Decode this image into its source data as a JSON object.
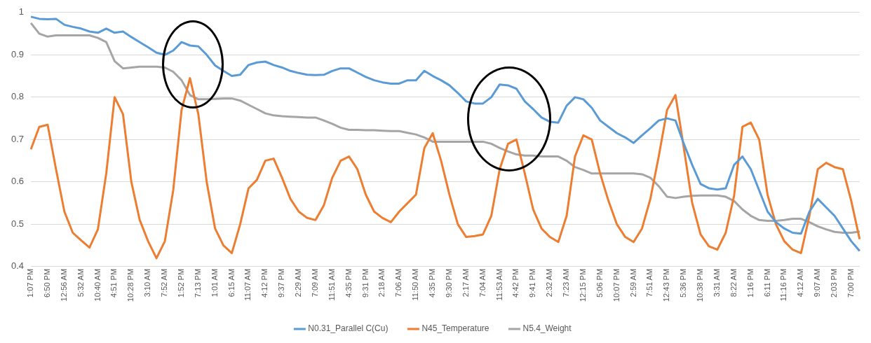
{
  "chart_data": {
    "type": "line",
    "categories": [
      "1:07 PM",
      null,
      "6:50 PM",
      null,
      "12:56 AM",
      null,
      "5:32 AM",
      null,
      "10:40 AM",
      null,
      "4:51 PM",
      null,
      "10:28 PM",
      null,
      "3:10 AM",
      null,
      "7:52 AM",
      null,
      "1:52 PM",
      null,
      "7:13 PM",
      null,
      "1:01 AM",
      null,
      "6:15 AM",
      null,
      "11:07 AM",
      null,
      "4:12 PM",
      null,
      "9:37 PM",
      null,
      "2:29 AM",
      null,
      "7:09 AM",
      null,
      "11:51 AM",
      null,
      "4:35 PM",
      null,
      "9:31 PM",
      null,
      "2:18 AM",
      null,
      "7:06 AM",
      null,
      "11:50 AM",
      null,
      "4:35 PM",
      null,
      "9:30 PM",
      null,
      "2:17 AM",
      null,
      "7:04 AM",
      null,
      "11:53 AM",
      null,
      "4:42 PM",
      null,
      "9:41 PM",
      null,
      "2:32 AM",
      null,
      "7:23 AM",
      null,
      "12:15 PM",
      null,
      "5:06 PM",
      null,
      "10:07 PM",
      null,
      "2:59 AM",
      null,
      "7:51 AM",
      null,
      "12:43 PM",
      null,
      "5:36 PM",
      null,
      "10:38 PM",
      null,
      "3:31 AM",
      null,
      "8:22 AM",
      null,
      "1:16 PM",
      null,
      "6:11 PM",
      null,
      "11:16 PM",
      null,
      "4:12 AM",
      null,
      "9:07 AM",
      null,
      "2:03 PM",
      null,
      "7:00 PM",
      null
    ],
    "series": [
      {
        "name": "N0.31_Parallel C(Cu)",
        "color": "#5b9bd5",
        "values": [
          0.99,
          0.985,
          0.984,
          0.985,
          0.971,
          0.966,
          0.962,
          0.955,
          0.952,
          0.962,
          0.952,
          0.955,
          0.942,
          0.93,
          0.918,
          0.905,
          0.9,
          0.91,
          0.93,
          0.922,
          0.92,
          0.9,
          0.875,
          0.862,
          0.85,
          0.853,
          0.876,
          0.882,
          0.884,
          0.876,
          0.87,
          0.862,
          0.857,
          0.853,
          0.852,
          0.853,
          0.862,
          0.868,
          0.868,
          0.858,
          0.848,
          0.84,
          0.835,
          0.832,
          0.832,
          0.84,
          0.84,
          0.862,
          0.85,
          0.84,
          0.828,
          0.81,
          0.79,
          0.785,
          0.785,
          0.8,
          0.83,
          0.828,
          0.82,
          0.79,
          0.772,
          0.752,
          0.742,
          0.74,
          0.78,
          0.8,
          0.795,
          0.775,
          0.745,
          0.73,
          0.715,
          0.705,
          0.692,
          0.71,
          0.727,
          0.745,
          0.75,
          0.745,
          0.69,
          0.64,
          0.595,
          0.585,
          0.582,
          0.585,
          0.64,
          0.66,
          0.63,
          0.58,
          0.53,
          0.505,
          0.49,
          0.48,
          0.478,
          0.53,
          0.56,
          0.54,
          0.52,
          0.49,
          0.46,
          0.437
        ]
      },
      {
        "name": "N45_Temperature",
        "color": "#ed7d31",
        "values": [
          0.677,
          0.73,
          0.735,
          0.63,
          0.53,
          0.48,
          0.462,
          0.445,
          0.488,
          0.62,
          0.8,
          0.76,
          0.6,
          0.51,
          0.46,
          0.42,
          0.46,
          0.58,
          0.77,
          0.845,
          0.76,
          0.6,
          0.49,
          0.45,
          0.432,
          0.5,
          0.585,
          0.605,
          0.65,
          0.655,
          0.61,
          0.56,
          0.53,
          0.515,
          0.51,
          0.545,
          0.61,
          0.65,
          0.66,
          0.63,
          0.57,
          0.53,
          0.515,
          0.505,
          0.53,
          0.55,
          0.57,
          0.68,
          0.715,
          0.65,
          0.57,
          0.5,
          0.47,
          0.472,
          0.476,
          0.52,
          0.63,
          0.69,
          0.7,
          0.62,
          0.535,
          0.49,
          0.47,
          0.458,
          0.52,
          0.66,
          0.71,
          0.7,
          0.62,
          0.555,
          0.5,
          0.47,
          0.458,
          0.49,
          0.56,
          0.66,
          0.77,
          0.805,
          0.68,
          0.55,
          0.476,
          0.448,
          0.44,
          0.48,
          0.567,
          0.73,
          0.74,
          0.7,
          0.57,
          0.5,
          0.46,
          0.44,
          0.432,
          0.52,
          0.63,
          0.645,
          0.635,
          0.63,
          0.555,
          0.465
        ]
      },
      {
        "name": "N5.4_Weight",
        "color": "#a5a5a5",
        "values": [
          0.975,
          0.95,
          0.943,
          0.946,
          0.946,
          0.946,
          0.946,
          0.946,
          0.94,
          0.93,
          0.885,
          0.868,
          0.87,
          0.872,
          0.872,
          0.872,
          0.87,
          0.86,
          0.84,
          0.805,
          0.795,
          0.795,
          0.796,
          0.797,
          0.797,
          0.792,
          0.782,
          0.772,
          0.762,
          0.757,
          0.755,
          0.754,
          0.753,
          0.752,
          0.752,
          0.745,
          0.737,
          0.728,
          0.723,
          0.723,
          0.722,
          0.722,
          0.721,
          0.72,
          0.72,
          0.716,
          0.712,
          0.705,
          0.695,
          0.695,
          0.695,
          0.695,
          0.695,
          0.695,
          0.695,
          0.69,
          0.68,
          0.672,
          0.665,
          0.662,
          0.662,
          0.66,
          0.66,
          0.66,
          0.65,
          0.635,
          0.628,
          0.62,
          0.62,
          0.62,
          0.62,
          0.62,
          0.62,
          0.618,
          0.61,
          0.59,
          0.565,
          0.562,
          0.565,
          0.567,
          0.568,
          0.568,
          0.568,
          0.565,
          0.555,
          0.535,
          0.52,
          0.51,
          0.508,
          0.508,
          0.51,
          0.513,
          0.513,
          0.505,
          0.495,
          0.488,
          0.482,
          0.48,
          0.48,
          0.483
        ]
      }
    ],
    "ylim": [
      0.4,
      1
    ],
    "yticks": [
      0.4,
      0.5,
      0.6,
      0.7,
      0.8,
      0.9,
      1
    ],
    "grid": "y",
    "legend": "bottom",
    "marker": "none"
  }
}
